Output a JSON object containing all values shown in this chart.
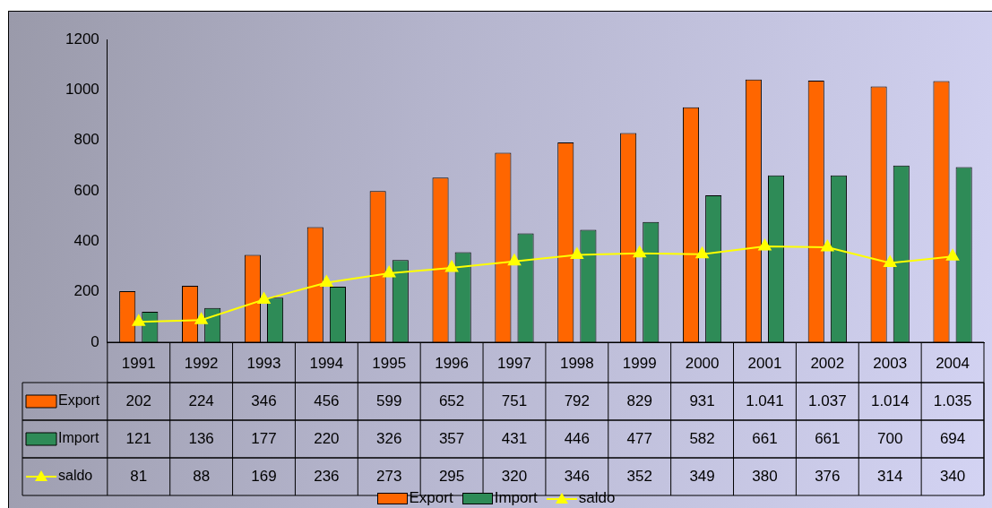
{
  "chart_data": {
    "type": "bar",
    "categories": [
      "1991",
      "1992",
      "1993",
      "1994",
      "1995",
      "1996",
      "1997",
      "1998",
      "1999",
      "2000",
      "2001",
      "2002",
      "2003",
      "2004"
    ],
    "series": [
      {
        "name": "Export",
        "color": "#ff6600",
        "values": [
          202,
          224,
          346,
          456,
          599,
          652,
          751,
          792,
          829,
          931,
          1041,
          1037,
          1014,
          1035
        ],
        "value_labels": [
          "202",
          "224",
          "346",
          "456",
          "599",
          "652",
          "751",
          "792",
          "829",
          "931",
          "1.041",
          "1.037",
          "1.014",
          "1.035"
        ]
      },
      {
        "name": "Import",
        "color": "#2e8b57",
        "values": [
          121,
          136,
          177,
          220,
          326,
          357,
          431,
          446,
          477,
          582,
          661,
          661,
          700,
          694
        ],
        "value_labels": [
          "121",
          "136",
          "177",
          "220",
          "326",
          "357",
          "431",
          "446",
          "477",
          "582",
          "661",
          "661",
          "700",
          "694"
        ]
      },
      {
        "name": "saldo",
        "type": "line",
        "color": "#ffff00",
        "values": [
          81,
          88,
          169,
          236,
          273,
          295,
          320,
          346,
          352,
          349,
          380,
          376,
          314,
          340
        ],
        "value_labels": [
          "81",
          "88",
          "169",
          "236",
          "273",
          "295",
          "320",
          "346",
          "352",
          "349",
          "380",
          "376",
          "314",
          "340"
        ]
      }
    ],
    "ylim": [
      0,
      1200
    ],
    "yticks": [
      0,
      200,
      400,
      600,
      800,
      1000,
      1200
    ],
    "grid": false,
    "legend": "bottom",
    "marker": "triangle",
    "line_style": "solid"
  }
}
